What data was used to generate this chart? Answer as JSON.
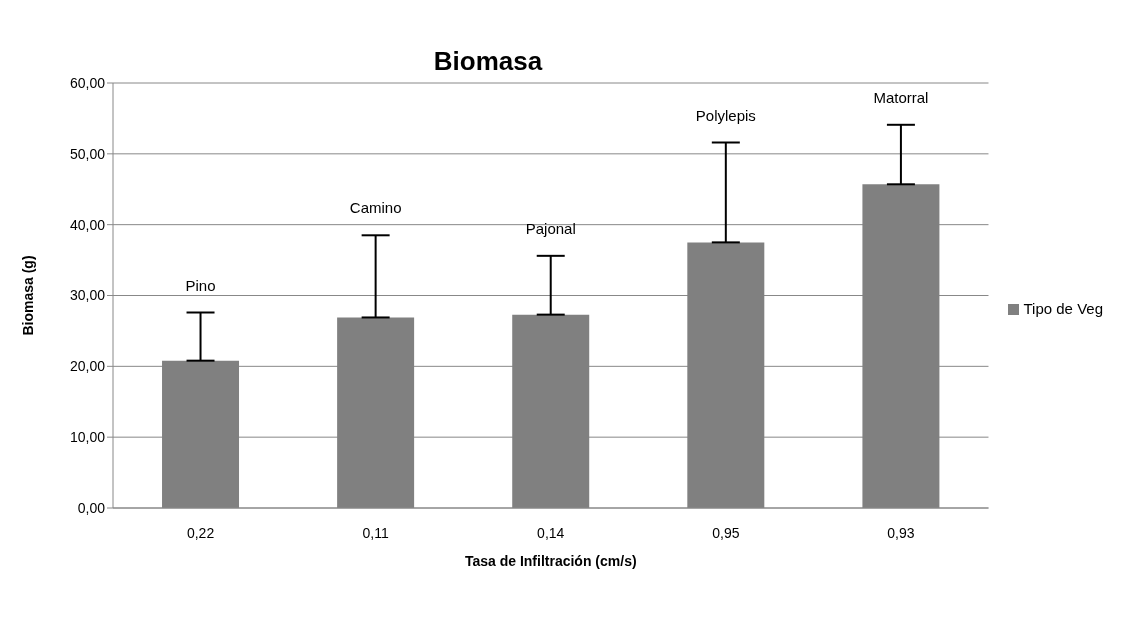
{
  "chart_data": {
    "type": "bar",
    "title": "Biomasa",
    "xlabel": "Tasa de Infiltración (cm/s)",
    "ylabel": "Biomasa (g)",
    "categories": [
      "0,22",
      "0,11",
      "0,14",
      "0,95",
      "0,93"
    ],
    "series": [
      {
        "name": "Tipo de Veg",
        "color": "#808080",
        "values": [
          20.8,
          26.9,
          27.3,
          37.5,
          45.7
        ],
        "errors": [
          [
            20.8,
            27.6
          ],
          [
            26.9,
            38.5
          ],
          [
            27.3,
            35.6
          ],
          [
            37.5,
            51.6
          ],
          [
            45.7,
            54.1
          ]
        ]
      }
    ],
    "ylim": [
      0,
      60
    ],
    "yticks": [
      {
        "value": 0,
        "label": "0,00"
      },
      {
        "value": 10,
        "label": "10,00"
      },
      {
        "value": 20,
        "label": "20,00"
      },
      {
        "value": 30,
        "label": "30,00"
      },
      {
        "value": 40,
        "label": "40,00"
      },
      {
        "value": 50,
        "label": "50,00"
      },
      {
        "value": 60,
        "label": "60,00"
      }
    ],
    "grid": "y",
    "legend": "right",
    "annotations": [
      {
        "text": "Pino",
        "x": "0,22",
        "y": 27.6
      },
      {
        "text": "Camino",
        "x": "0,11",
        "y": 38.5
      },
      {
        "text": "Pajonal",
        "x": "0,14",
        "y": 35.6
      },
      {
        "text": "Polylepis",
        "x": "0,95",
        "y": 51.6
      },
      {
        "text": "Matorral",
        "x": "0,93",
        "y": 54.1
      }
    ]
  }
}
